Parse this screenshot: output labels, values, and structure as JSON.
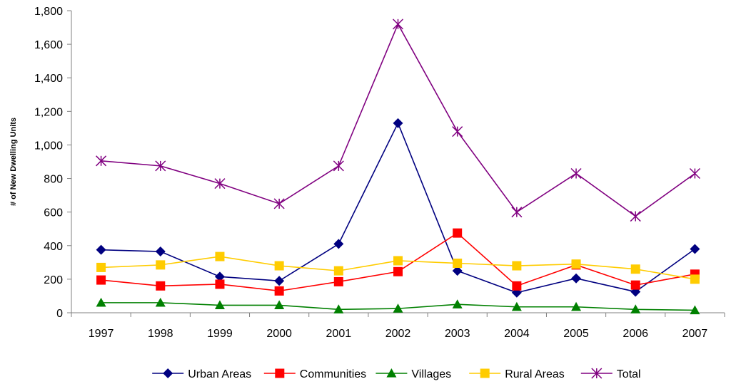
{
  "chart_data": {
    "type": "line",
    "title": "",
    "xlabel": "",
    "ylabel": "# of New Dwelling Units",
    "ylim": [
      0,
      1800
    ],
    "yticks": [
      0,
      200,
      400,
      600,
      800,
      1000,
      1200,
      1400,
      1600,
      1800
    ],
    "ytick_labels": [
      "0",
      "200",
      "400",
      "600",
      "800",
      "1,000",
      "1,200",
      "1,400",
      "1,600",
      "1,800"
    ],
    "categories": [
      "1997",
      "1998",
      "1999",
      "2000",
      "2001",
      "2002",
      "2003",
      "2004",
      "2005",
      "2006",
      "2007"
    ],
    "grid": false,
    "legend_position": "bottom",
    "series": [
      {
        "name": "Urban Areas",
        "color": "#000080",
        "marker": "diamond",
        "values": [
          375,
          365,
          215,
          190,
          410,
          1130,
          250,
          120,
          205,
          125,
          380
        ]
      },
      {
        "name": "Communities",
        "color": "#ff0000",
        "marker": "square",
        "values": [
          195,
          160,
          170,
          130,
          185,
          245,
          475,
          160,
          285,
          165,
          230
        ]
      },
      {
        "name": "Villages",
        "color": "#008000",
        "marker": "triangle",
        "values": [
          60,
          60,
          45,
          45,
          20,
          25,
          50,
          35,
          35,
          20,
          15
        ]
      },
      {
        "name": "Rural Areas",
        "color": "#ffcc00",
        "marker": "square",
        "values": [
          270,
          285,
          335,
          280,
          250,
          310,
          295,
          280,
          290,
          260,
          200
        ]
      },
      {
        "name": "Total",
        "color": "#800080",
        "marker": "star",
        "values": [
          905,
          875,
          770,
          650,
          875,
          1720,
          1080,
          600,
          830,
          575,
          830
        ]
      }
    ]
  }
}
